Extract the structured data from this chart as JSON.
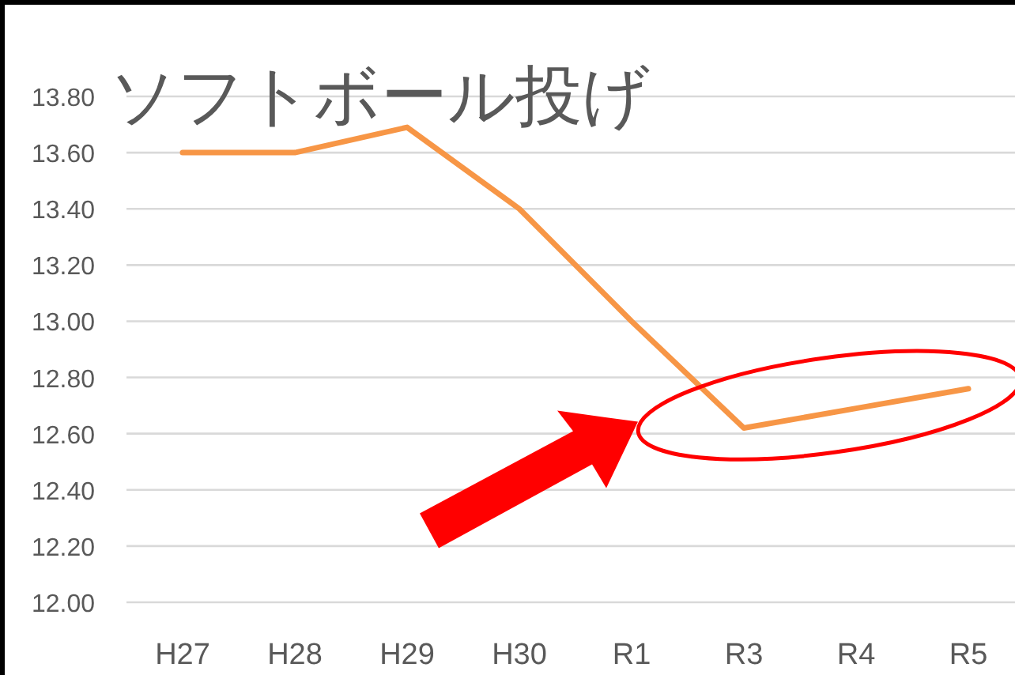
{
  "chart_data": {
    "type": "line",
    "title": "ソフトボール投げ",
    "categories": [
      "H27",
      "H28",
      "H29",
      "H30",
      "R1",
      "R3",
      "R4",
      "R5"
    ],
    "series": [
      {
        "color": "#f79646",
        "values": [
          13.6,
          13.6,
          13.69,
          13.4,
          13.0,
          12.62,
          12.69,
          12.76
        ]
      }
    ],
    "ylim": [
      12.0,
      13.8
    ],
    "yticks": [
      {
        "value": 12.0,
        "label": "12.00"
      },
      {
        "value": 12.2,
        "label": "12.20"
      },
      {
        "value": 12.4,
        "label": "12.40"
      },
      {
        "value": 12.6,
        "label": "12.60"
      },
      {
        "value": 12.8,
        "label": "12.80"
      },
      {
        "value": 13.0,
        "label": "13.00"
      },
      {
        "value": 13.2,
        "label": "13.20"
      },
      {
        "value": 13.4,
        "label": "13.40"
      },
      {
        "value": 13.6,
        "label": "13.60"
      },
      {
        "value": 13.8,
        "label": "13.80"
      }
    ],
    "grid": "y",
    "marker": "none",
    "line_style": "solid"
  }
}
